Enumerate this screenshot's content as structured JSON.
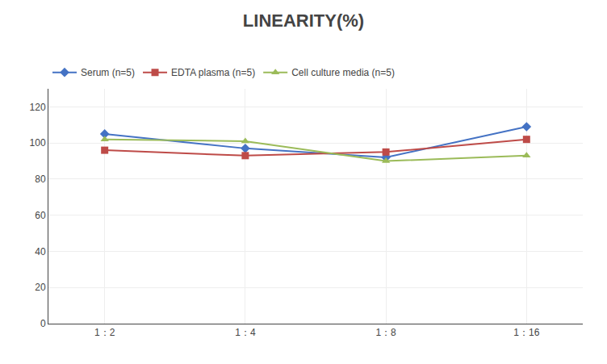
{
  "chart_data": {
    "type": "line",
    "title": "LINEARITY(%)",
    "categories": [
      "1：2",
      "1：4",
      "1：8",
      "1：16"
    ],
    "series": [
      {
        "name": "Serum (n=5)",
        "color": "#4472C4",
        "marker": "diamond",
        "values": [
          105,
          97,
          92,
          109
        ]
      },
      {
        "name": "EDTA plasma (n=5)",
        "color": "#BE4B48",
        "marker": "square",
        "values": [
          96,
          93,
          95,
          102
        ]
      },
      {
        "name": "Cell culture media (n=5)",
        "color": "#9BBB59",
        "marker": "triangle-up",
        "values": [
          102,
          101,
          90,
          93
        ]
      }
    ],
    "ylim": [
      0,
      130
    ],
    "yticks": [
      0,
      20,
      40,
      60,
      80,
      100,
      120
    ],
    "grid": true,
    "legend": "top"
  }
}
